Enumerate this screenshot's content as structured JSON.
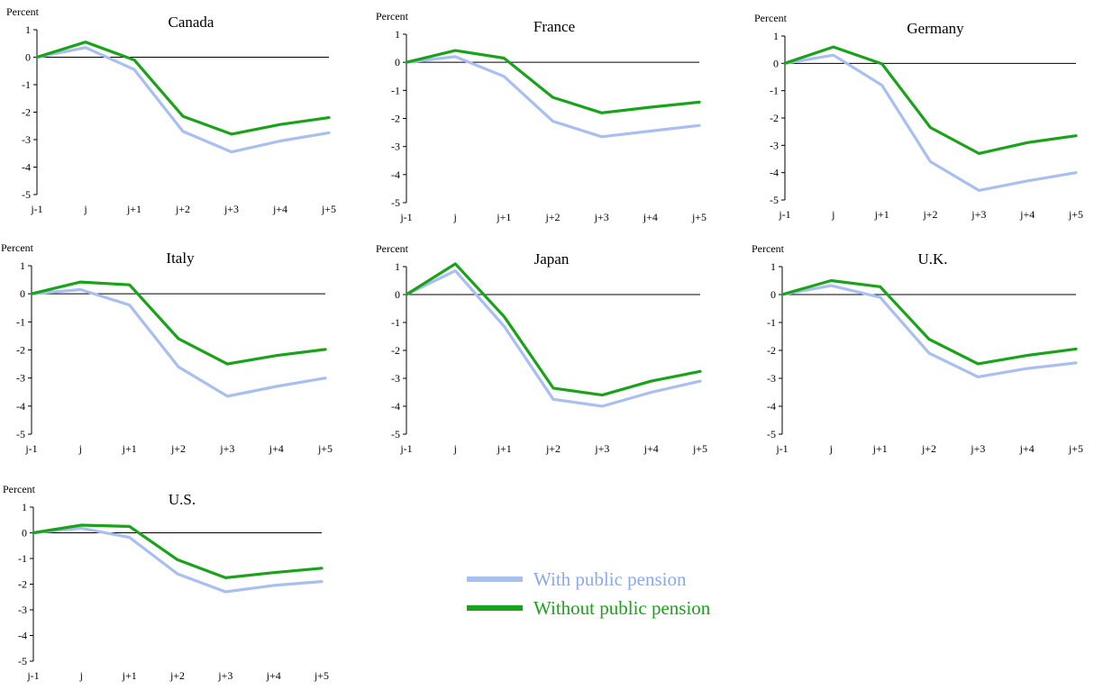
{
  "chart_data": {
    "type": "line",
    "unit_label": "Percent",
    "x": [
      "j-1",
      "j",
      "j+1",
      "j+2",
      "j+3",
      "j+4",
      "j+5"
    ],
    "yticks": [
      1,
      0,
      -1,
      -2,
      -3,
      -4,
      -5
    ],
    "ylim": [
      -5,
      1
    ],
    "legend_placement": "bottom-center",
    "legend": [
      {
        "key": "with",
        "label": "With public pension",
        "color": "#a8bff0"
      },
      {
        "key": "without",
        "label": "Without public pension",
        "color": "#1aa31a"
      }
    ],
    "panels": [
      {
        "title": "Canada",
        "with": [
          0,
          0.35,
          -0.45,
          -2.7,
          -3.45,
          -3.05,
          -2.75
        ],
        "without": [
          0,
          0.55,
          -0.1,
          -2.15,
          -2.8,
          -2.45,
          -2.2
        ]
      },
      {
        "title": "France",
        "with": [
          0,
          0.2,
          -0.5,
          -2.1,
          -2.65,
          -2.45,
          -2.25
        ],
        "without": [
          0,
          0.42,
          0.15,
          -1.25,
          -1.8,
          -1.6,
          -1.42
        ]
      },
      {
        "title": "Germany",
        "with": [
          0,
          0.3,
          -0.8,
          -3.6,
          -4.65,
          -4.3,
          -4.0
        ],
        "without": [
          0,
          0.6,
          -0.02,
          -2.35,
          -3.3,
          -2.9,
          -2.65
        ]
      },
      {
        "title": "Italy",
        "with": [
          0,
          0.15,
          -0.4,
          -2.6,
          -3.65,
          -3.3,
          -3.0
        ],
        "without": [
          0,
          0.42,
          0.32,
          -1.6,
          -2.5,
          -2.2,
          -1.98
        ]
      },
      {
        "title": "Japan",
        "with": [
          0,
          0.85,
          -1.15,
          -3.75,
          -4.0,
          -3.5,
          -3.1
        ],
        "without": [
          0,
          1.1,
          -0.8,
          -3.35,
          -3.6,
          -3.1,
          -2.75
        ]
      },
      {
        "title": "U.K.",
        "with": [
          0,
          0.32,
          -0.1,
          -2.1,
          -2.95,
          -2.65,
          -2.45
        ],
        "without": [
          0,
          0.5,
          0.28,
          -1.6,
          -2.48,
          -2.18,
          -1.95
        ]
      },
      {
        "title": "U.S.",
        "with": [
          0,
          0.18,
          -0.18,
          -1.6,
          -2.3,
          -2.05,
          -1.9
        ],
        "without": [
          0,
          0.3,
          0.25,
          -1.05,
          -1.75,
          -1.55,
          -1.38
        ]
      }
    ]
  }
}
